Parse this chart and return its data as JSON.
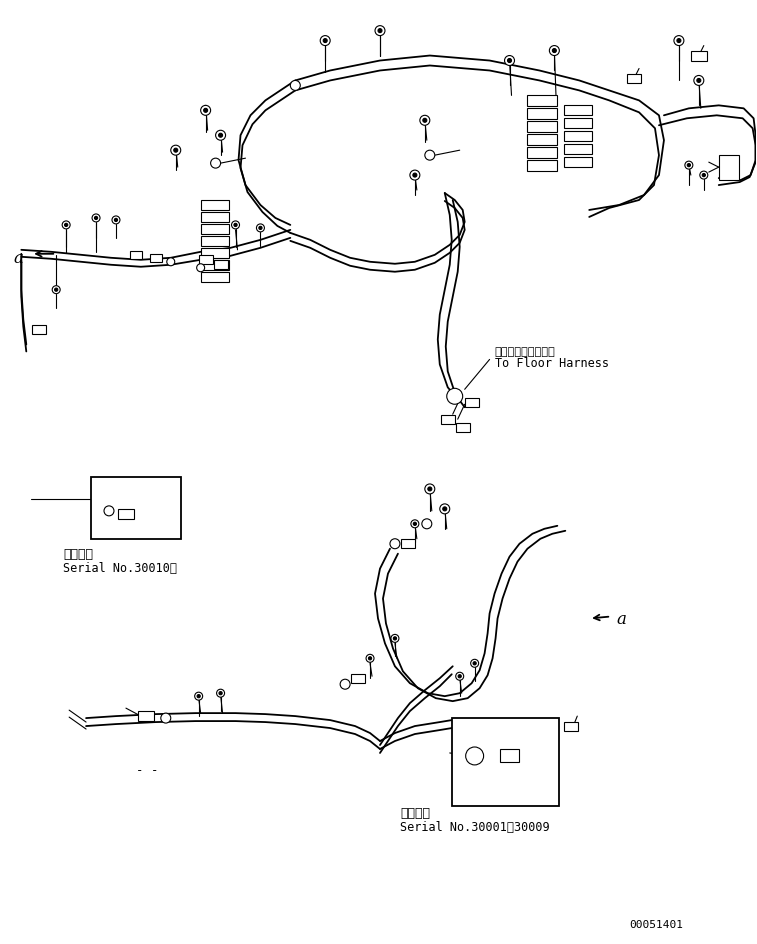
{
  "bg_color": "#ffffff",
  "line_color": "#000000",
  "lw": 1.3,
  "tlw": 0.8,
  "fig_width": 7.57,
  "fig_height": 9.45,
  "dpi": 100,
  "part_number": "00051401",
  "ann_jp": "フロアーハーネスへ",
  "ann_en": "To Floor Harness",
  "s1_jp": "適用号機",
  "s1_en": "Serial No.30010～",
  "s2_jp": "適用号機",
  "s2_en": "Serial No.30001～30009",
  "la": "a"
}
